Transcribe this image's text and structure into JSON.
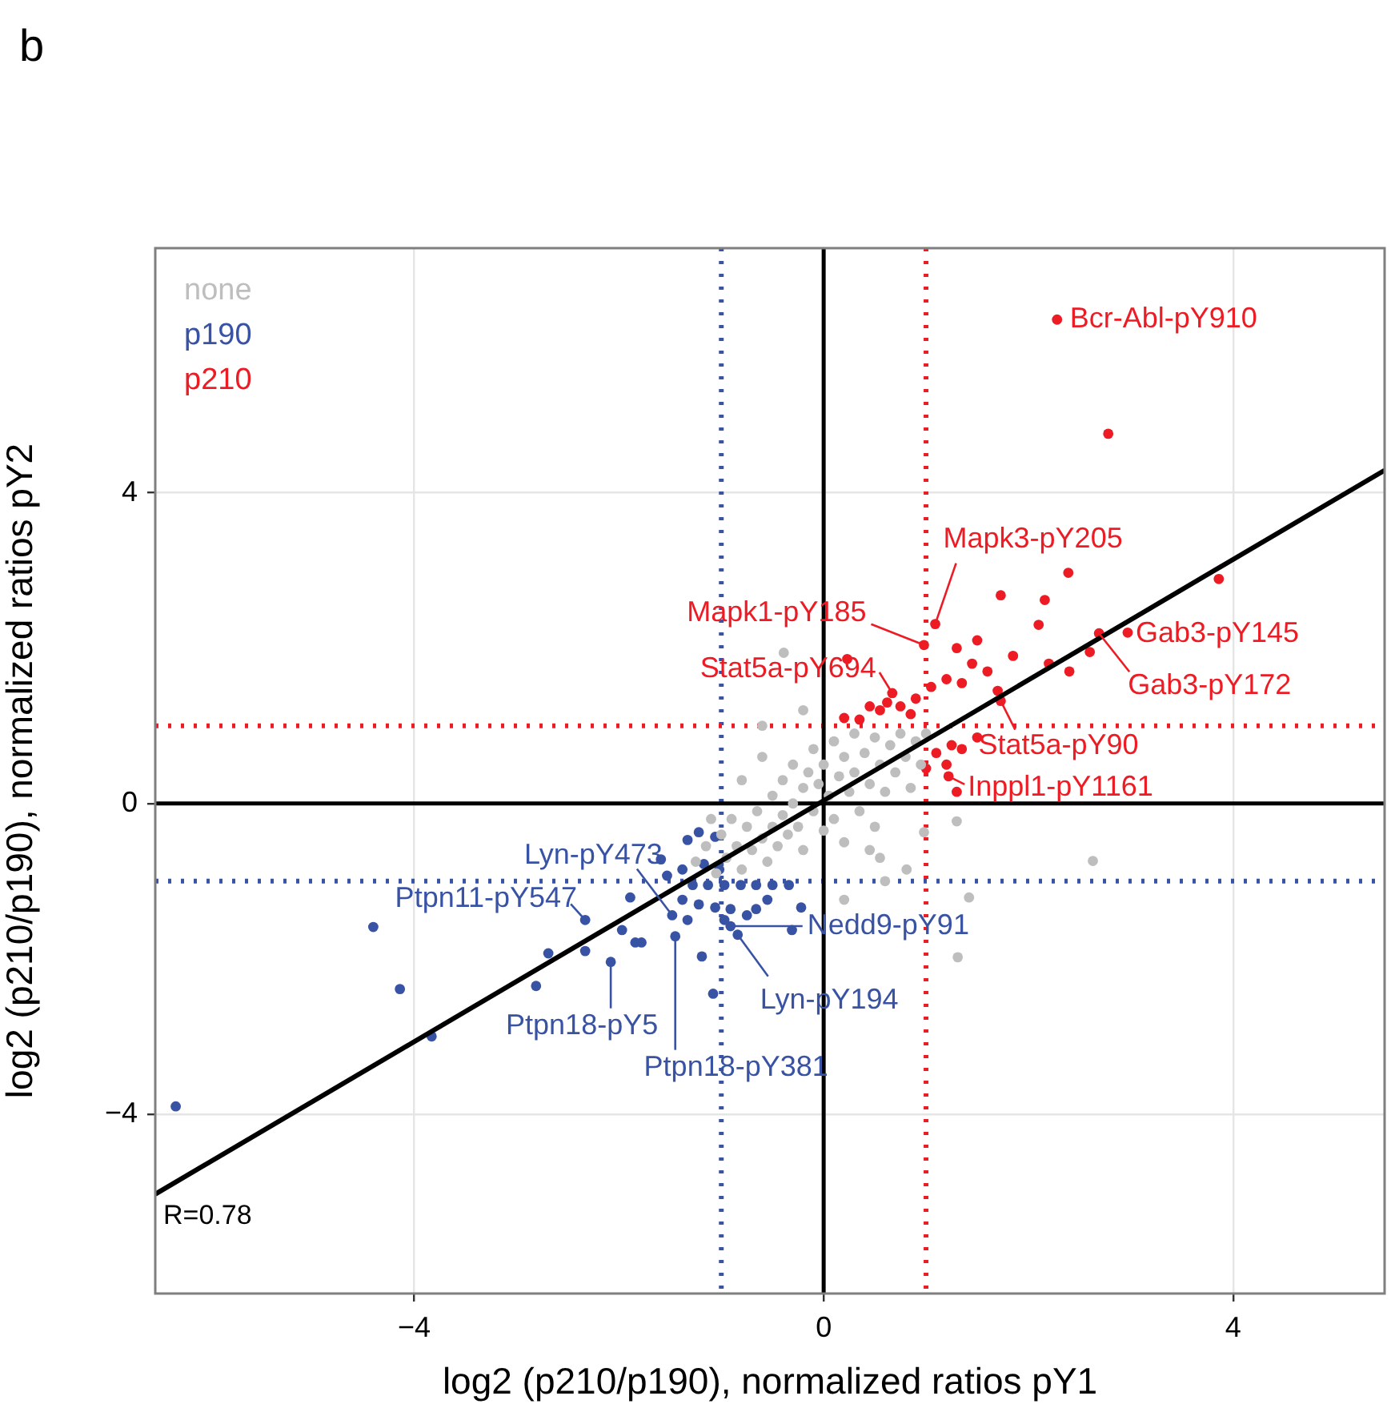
{
  "chart_data": {
    "type": "scatter",
    "title": "b",
    "xlabel": "log2 (p210/p190), normalized ratios pY1",
    "ylabel": "log2 (p210/p190), normalized ratios pY2",
    "xlim": [
      -6.53,
      5.48
    ],
    "ylim": [
      -6.31,
      7.15
    ],
    "xticks": [
      {
        "value": -4,
        "label": "−4"
      },
      0,
      4
    ],
    "yticks": [
      {
        "value": -4,
        "label": "−4"
      },
      0,
      4
    ],
    "grid": true,
    "legend": "top left",
    "marker": "circle",
    "series": [
      {
        "name": "none",
        "color": "#bebebe",
        "x": [
          -1.25,
          -1.15,
          -1.05,
          -1.0,
          -0.95,
          -0.9,
          -0.85,
          -0.8,
          -0.75,
          -0.7,
          -0.65,
          -0.6,
          -0.55,
          -0.5,
          -0.5,
          -0.45,
          -0.4,
          -0.4,
          -0.35,
          -0.3,
          -0.3,
          -0.25,
          -0.2,
          -0.2,
          -0.15,
          -0.1,
          -0.1,
          -0.05,
          0.0,
          0.0,
          0.05,
          0.1,
          0.1,
          0.15,
          0.2,
          0.2,
          0.25,
          0.3,
          0.3,
          0.35,
          0.4,
          0.45,
          0.5,
          0.5,
          0.55,
          0.6,
          0.65,
          0.7,
          0.75,
          0.8,
          0.85,
          0.9,
          0.95,
          1.0,
          -0.6,
          -0.8,
          -1.1,
          -0.39,
          -0.2,
          0.45,
          1.3,
          1.42,
          1.31,
          0.98,
          0.81,
          0.55,
          0.2,
          2.63,
          -0.6,
          0.6
        ],
        "values": [
          -0.75,
          -0.55,
          -0.9,
          -0.4,
          -0.7,
          -0.2,
          -0.55,
          -0.85,
          -0.3,
          -0.6,
          -0.1,
          -0.45,
          -0.75,
          0.1,
          -0.3,
          -0.55,
          0.3,
          -0.15,
          -0.4,
          0.5,
          0.0,
          -0.3,
          0.2,
          -0.6,
          0.4,
          -0.1,
          0.7,
          0.25,
          -0.35,
          0.5,
          0.1,
          0.8,
          -0.2,
          0.35,
          0.6,
          -0.5,
          0.15,
          0.9,
          0.4,
          -0.1,
          0.65,
          0.25,
          0.85,
          -0.3,
          0.5,
          0.15,
          0.75,
          0.4,
          0.9,
          0.6,
          0.2,
          0.8,
          0.5,
          0.9,
          0.6,
          0.3,
          -0.2,
          1.94,
          1.2,
          -0.6,
          -0.23,
          -1.21,
          -1.98,
          -0.37,
          -0.85,
          -0.7,
          -1.24,
          -0.74,
          1.0,
          -1.0
        ]
      },
      {
        "name": "p190",
        "color": "#3953a4",
        "x": [
          -6.33,
          -4.4,
          -4.14,
          -3.83,
          -2.69,
          -2.81,
          -2.33,
          -2.33,
          -2.08,
          -1.97,
          -1.84,
          -1.78,
          -1.45,
          -1.19,
          -1.08,
          -0.84,
          -0.91,
          -0.31,
          -0.22,
          -1.89,
          -1.48,
          -1.33,
          -1.22,
          -1.06,
          -1.38,
          -1.53,
          -1.28,
          -1.13,
          -0.97,
          -0.81,
          -0.66,
          -0.5,
          -0.34,
          -1.38,
          -1.22,
          -1.06,
          -0.91,
          -0.75,
          -0.66,
          -0.55,
          -1.33,
          -0.97,
          -1.59,
          -1.02,
          -1.17
        ],
        "values": [
          -3.9,
          -1.59,
          -2.39,
          -3.0,
          -1.93,
          -2.35,
          -1.5,
          -1.9,
          -2.04,
          -1.63,
          -1.79,
          -1.79,
          -1.71,
          -1.97,
          -2.45,
          -1.69,
          -1.58,
          -1.63,
          -1.34,
          -1.21,
          -1.44,
          -0.47,
          -0.37,
          -0.43,
          -0.85,
          -0.93,
          -1.05,
          -1.05,
          -1.05,
          -1.05,
          -1.05,
          -1.05,
          -1.05,
          -1.24,
          -1.3,
          -1.34,
          -1.36,
          -1.44,
          -1.36,
          -1.24,
          -1.5,
          -1.5,
          -0.72,
          -0.85,
          -0.78
        ]
      },
      {
        "name": "p210",
        "color": "#ed1c24",
        "x": [
          2.28,
          2.78,
          1.09,
          0.98,
          0.67,
          2.97,
          2.69,
          1.73,
          1.22,
          3.86,
          2.39,
          2.16,
          1.73,
          0.35,
          0.45,
          0.55,
          0.62,
          0.75,
          0.85,
          0.9,
          1.05,
          1.2,
          1.35,
          1.45,
          1.3,
          1.5,
          1.6,
          1.7,
          1.85,
          2.2,
          2.4,
          2.6,
          2.1,
          1.25,
          1.1,
          1.35,
          1.2,
          1.5,
          1.3,
          1.0,
          0.2,
          0.23
        ],
        "values": [
          6.23,
          4.76,
          2.31,
          2.04,
          1.42,
          2.2,
          2.19,
          1.32,
          0.35,
          2.89,
          2.97,
          2.62,
          2.68,
          1.08,
          1.25,
          1.2,
          1.3,
          1.25,
          1.15,
          1.35,
          1.5,
          1.6,
          1.55,
          1.8,
          2.0,
          2.1,
          1.7,
          1.45,
          1.9,
          1.8,
          1.7,
          1.95,
          2.3,
          0.75,
          0.65,
          0.7,
          0.5,
          0.85,
          0.15,
          0.45,
          1.1,
          1.86
        ]
      },
      {
        "type": "line",
        "marker": "none",
        "color": "#000000",
        "x": [
          -6.53,
          5.48
        ],
        "values": [
          -5.03,
          4.29
        ]
      }
    ],
    "ref_lines": [
      {
        "axis": "x",
        "value": -1,
        "color": "#3953a4",
        "line_style": "dotted"
      },
      {
        "axis": "x",
        "value": 1,
        "color": "#ed1c24",
        "line_style": "dotted"
      },
      {
        "axis": "y",
        "value": -1,
        "color": "#3953a4",
        "line_style": "dotted"
      },
      {
        "axis": "y",
        "value": 1,
        "color": "#ed1c24",
        "line_style": "dotted"
      },
      {
        "axis": "x",
        "value": 0,
        "color": "#000000",
        "line_style": "solid"
      },
      {
        "axis": "y",
        "value": 0,
        "color": "#000000",
        "line_style": "solid"
      }
    ],
    "annotations": [
      {
        "text": "Bcr-Abl-pY910",
        "x": 2.28,
        "y": 6.23
      },
      {
        "text": "Mapk3-pY205",
        "x": 1.09,
        "y": 2.31
      },
      {
        "text": "Mapk1-pY185",
        "x": 0.98,
        "y": 2.04
      },
      {
        "text": "Stat5a-pY694",
        "x": 0.67,
        "y": 1.42
      },
      {
        "text": "Gab3-pY145",
        "x": 2.97,
        "y": 2.2
      },
      {
        "text": "Gab3-pY172",
        "x": 2.69,
        "y": 2.19
      },
      {
        "text": "Stat5a-pY90",
        "x": 1.73,
        "y": 1.32
      },
      {
        "text": "Inppl1-pY1161",
        "x": 1.22,
        "y": 0.35
      },
      {
        "text": "Lyn-pY473",
        "x": -1.48,
        "y": -1.44
      },
      {
        "text": "Ptpn11-pY547",
        "x": -2.33,
        "y": -1.5
      },
      {
        "text": "Ptpn18-pY5",
        "x": -2.08,
        "y": -2.04
      },
      {
        "text": "Ptpn18-pY381",
        "x": -1.45,
        "y": -1.71
      },
      {
        "text": "Lyn-pY194",
        "x": -0.84,
        "y": -1.69
      },
      {
        "text": "Nedd9-pY91",
        "x": -0.91,
        "y": -1.58
      },
      "R=0.78"
    ]
  }
}
